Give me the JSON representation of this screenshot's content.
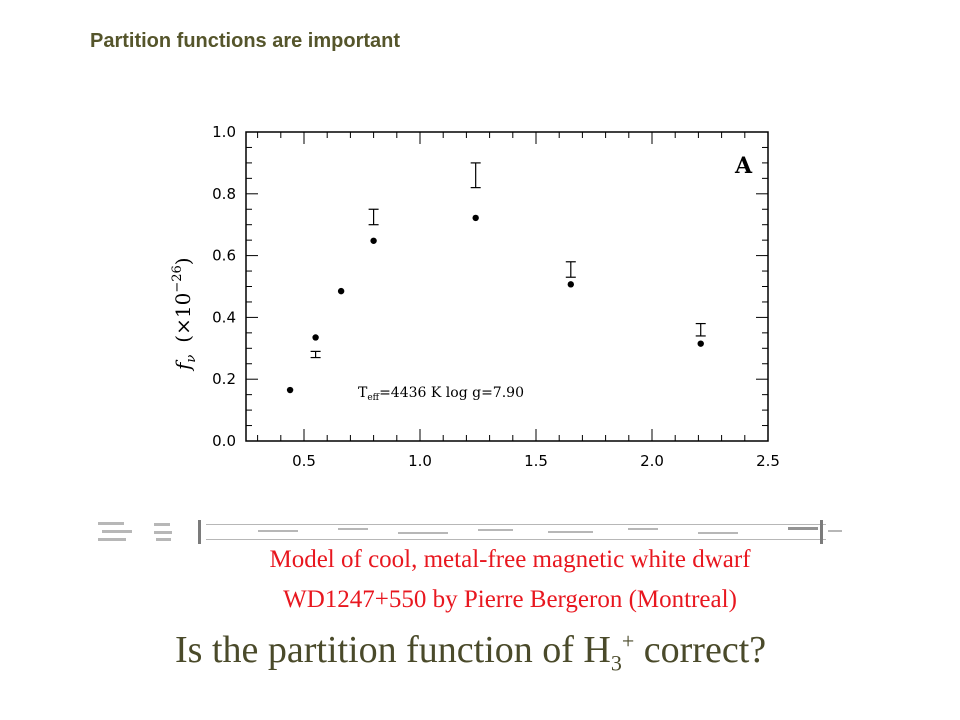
{
  "title": "Partition functions are important",
  "chart_data": {
    "type": "scatter",
    "title": "",
    "panel_label": "A",
    "xlabel": "",
    "ylabel_text": "f",
    "ylabel_sub": "ν",
    "ylabel_scale": "(×10",
    "ylabel_exp": "−26",
    "ylabel_close": ")",
    "xlim": [
      0.25,
      2.5
    ],
    "ylim": [
      0.0,
      1.0
    ],
    "xticks": [
      "0.5",
      "1.0",
      "1.5",
      "2.0",
      "2.5"
    ],
    "yticks": [
      "0.0",
      "0.2",
      "0.4",
      "0.6",
      "0.8",
      "1.0"
    ],
    "annotation_t": "T",
    "annotation_t_sub": "eff",
    "annotation_rest": "=4436 K   log g=7.90",
    "model_points": [
      {
        "x": 0.44,
        "y": 0.165
      },
      {
        "x": 0.55,
        "y": 0.335
      },
      {
        "x": 0.66,
        "y": 0.485
      },
      {
        "x": 0.8,
        "y": 0.648
      },
      {
        "x": 1.24,
        "y": 0.722
      },
      {
        "x": 1.65,
        "y": 0.507
      },
      {
        "x": 2.21,
        "y": 0.315
      }
    ],
    "observed_errorbars": [
      {
        "x": 0.55,
        "y_low": 0.27,
        "y_high": 0.29
      },
      {
        "x": 0.8,
        "y_low": 0.7,
        "y_high": 0.75
      },
      {
        "x": 1.24,
        "y_low": 0.82,
        "y_high": 0.9
      },
      {
        "x": 1.65,
        "y_low": 0.53,
        "y_high": 0.58
      },
      {
        "x": 2.21,
        "y_low": 0.34,
        "y_high": 0.38
      }
    ],
    "grid": false,
    "legend": "none"
  },
  "caption_line1": "Model of cool, metal-free magnetic white dwarf",
  "caption_line2": "WD1247+550  by Pierre Bergeron (Montreal)",
  "question_pre": "Is the partition function of H",
  "question_sub": "3",
  "question_sup": "+",
  "question_post": " correct?"
}
